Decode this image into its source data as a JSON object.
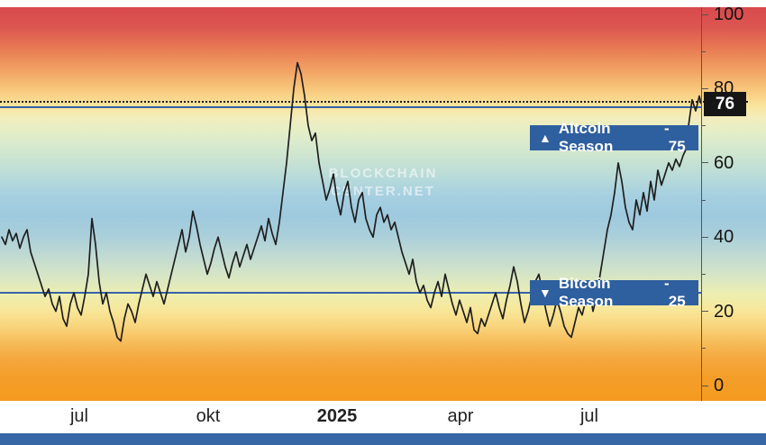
{
  "watermark": {
    "line1": "BLOCKCHAIN",
    "line2": "CENTER.NET"
  },
  "badges": {
    "altcoin": {
      "icon": "▲",
      "label": "Altcoin Season",
      "separator": "-",
      "value": "75"
    },
    "bitcoin": {
      "icon": "▼",
      "label": "Bitcoin Season",
      "separator": "-",
      "value": "25"
    },
    "current": {
      "value": "76"
    }
  },
  "colors": {
    "badge_blue": "#2e5f9e",
    "current_badge_bg": "#161616",
    "series_line": "#1f1f1f",
    "threshold_line": "#3563a8",
    "footer_bar": "#3767a4"
  },
  "chart_data": {
    "type": "line",
    "ylim": [
      0,
      100
    ],
    "y_ticks": [
      0,
      20,
      40,
      60,
      80,
      100
    ],
    "x_tick_labels": [
      {
        "label": "jul",
        "x": 88
      },
      {
        "label": "okt",
        "x": 231
      },
      {
        "label": "2025",
        "x": 374,
        "bold": true
      },
      {
        "label": "apr",
        "x": 511
      },
      {
        "label": "jul",
        "x": 654
      }
    ],
    "thresholds": {
      "altcoin_season": 75,
      "bitcoin_season": 25,
      "current": 76
    },
    "points": [
      [
        2,
        40
      ],
      [
        6,
        38
      ],
      [
        10,
        42
      ],
      [
        14,
        39
      ],
      [
        18,
        41
      ],
      [
        22,
        37
      ],
      [
        26,
        40
      ],
      [
        30,
        42
      ],
      [
        34,
        36
      ],
      [
        38,
        33
      ],
      [
        42,
        30
      ],
      [
        46,
        27
      ],
      [
        50,
        24
      ],
      [
        54,
        26
      ],
      [
        58,
        22
      ],
      [
        62,
        20
      ],
      [
        66,
        24
      ],
      [
        70,
        18
      ],
      [
        74,
        16
      ],
      [
        78,
        22
      ],
      [
        82,
        25
      ],
      [
        86,
        21
      ],
      [
        90,
        19
      ],
      [
        94,
        24
      ],
      [
        98,
        30
      ],
      [
        102,
        45
      ],
      [
        106,
        38
      ],
      [
        110,
        28
      ],
      [
        114,
        22
      ],
      [
        118,
        25
      ],
      [
        122,
        20
      ],
      [
        126,
        17
      ],
      [
        130,
        13
      ],
      [
        134,
        12
      ],
      [
        138,
        18
      ],
      [
        142,
        22
      ],
      [
        146,
        20
      ],
      [
        150,
        17
      ],
      [
        154,
        22
      ],
      [
        158,
        26
      ],
      [
        162,
        30
      ],
      [
        166,
        27
      ],
      [
        170,
        24
      ],
      [
        174,
        28
      ],
      [
        178,
        25
      ],
      [
        182,
        22
      ],
      [
        186,
        26
      ],
      [
        190,
        30
      ],
      [
        194,
        34
      ],
      [
        198,
        38
      ],
      [
        202,
        42
      ],
      [
        206,
        36
      ],
      [
        210,
        40
      ],
      [
        214,
        47
      ],
      [
        218,
        43
      ],
      [
        222,
        38
      ],
      [
        226,
        34
      ],
      [
        230,
        30
      ],
      [
        234,
        33
      ],
      [
        238,
        37
      ],
      [
        242,
        40
      ],
      [
        246,
        36
      ],
      [
        250,
        32
      ],
      [
        254,
        29
      ],
      [
        258,
        33
      ],
      [
        262,
        36
      ],
      [
        266,
        32
      ],
      [
        270,
        35
      ],
      [
        274,
        38
      ],
      [
        278,
        34
      ],
      [
        282,
        37
      ],
      [
        286,
        40
      ],
      [
        290,
        43
      ],
      [
        294,
        39
      ],
      [
        298,
        45
      ],
      [
        302,
        41
      ],
      [
        306,
        38
      ],
      [
        310,
        44
      ],
      [
        314,
        52
      ],
      [
        318,
        60
      ],
      [
        322,
        70
      ],
      [
        326,
        80
      ],
      [
        330,
        87
      ],
      [
        334,
        84
      ],
      [
        338,
        78
      ],
      [
        342,
        70
      ],
      [
        346,
        66
      ],
      [
        350,
        68
      ],
      [
        354,
        60
      ],
      [
        358,
        55
      ],
      [
        362,
        50
      ],
      [
        366,
        53
      ],
      [
        370,
        57
      ],
      [
        374,
        50
      ],
      [
        378,
        46
      ],
      [
        382,
        52
      ],
      [
        386,
        55
      ],
      [
        390,
        48
      ],
      [
        394,
        44
      ],
      [
        398,
        50
      ],
      [
        402,
        52
      ],
      [
        406,
        45
      ],
      [
        410,
        42
      ],
      [
        414,
        40
      ],
      [
        418,
        46
      ],
      [
        422,
        48
      ],
      [
        426,
        44
      ],
      [
        430,
        46
      ],
      [
        434,
        42
      ],
      [
        438,
        44
      ],
      [
        442,
        40
      ],
      [
        446,
        36
      ],
      [
        450,
        33
      ],
      [
        454,
        30
      ],
      [
        458,
        34
      ],
      [
        462,
        28
      ],
      [
        466,
        25
      ],
      [
        470,
        27
      ],
      [
        474,
        23
      ],
      [
        478,
        21
      ],
      [
        482,
        25
      ],
      [
        486,
        28
      ],
      [
        490,
        24
      ],
      [
        494,
        30
      ],
      [
        498,
        26
      ],
      [
        502,
        22
      ],
      [
        506,
        19
      ],
      [
        510,
        23
      ],
      [
        514,
        20
      ],
      [
        518,
        17
      ],
      [
        522,
        21
      ],
      [
        526,
        15
      ],
      [
        530,
        14
      ],
      [
        534,
        18
      ],
      [
        538,
        16
      ],
      [
        542,
        19
      ],
      [
        546,
        22
      ],
      [
        550,
        25
      ],
      [
        554,
        21
      ],
      [
        558,
        18
      ],
      [
        562,
        23
      ],
      [
        566,
        27
      ],
      [
        570,
        32
      ],
      [
        574,
        28
      ],
      [
        578,
        22
      ],
      [
        582,
        17
      ],
      [
        586,
        20
      ],
      [
        590,
        24
      ],
      [
        594,
        28
      ],
      [
        598,
        30
      ],
      [
        602,
        25
      ],
      [
        606,
        20
      ],
      [
        610,
        16
      ],
      [
        614,
        19
      ],
      [
        618,
        23
      ],
      [
        622,
        20
      ],
      [
        626,
        16
      ],
      [
        630,
        14
      ],
      [
        634,
        13
      ],
      [
        638,
        17
      ],
      [
        642,
        21
      ],
      [
        646,
        19
      ],
      [
        650,
        23
      ],
      [
        654,
        26
      ],
      [
        658,
        20
      ],
      [
        662,
        24
      ],
      [
        666,
        30
      ],
      [
        670,
        36
      ],
      [
        674,
        42
      ],
      [
        678,
        46
      ],
      [
        682,
        52
      ],
      [
        686,
        60
      ],
      [
        690,
        55
      ],
      [
        694,
        48
      ],
      [
        698,
        44
      ],
      [
        702,
        42
      ],
      [
        706,
        50
      ],
      [
        710,
        46
      ],
      [
        714,
        52
      ],
      [
        718,
        47
      ],
      [
        722,
        55
      ],
      [
        726,
        50
      ],
      [
        730,
        58
      ],
      [
        734,
        54
      ],
      [
        738,
        57
      ],
      [
        742,
        60
      ],
      [
        746,
        58
      ],
      [
        750,
        61
      ],
      [
        754,
        59
      ],
      [
        758,
        62
      ],
      [
        762,
        64
      ],
      [
        764,
        70
      ],
      [
        768,
        77
      ],
      [
        772,
        74
      ],
      [
        776,
        78
      ],
      [
        778,
        76
      ]
    ]
  }
}
